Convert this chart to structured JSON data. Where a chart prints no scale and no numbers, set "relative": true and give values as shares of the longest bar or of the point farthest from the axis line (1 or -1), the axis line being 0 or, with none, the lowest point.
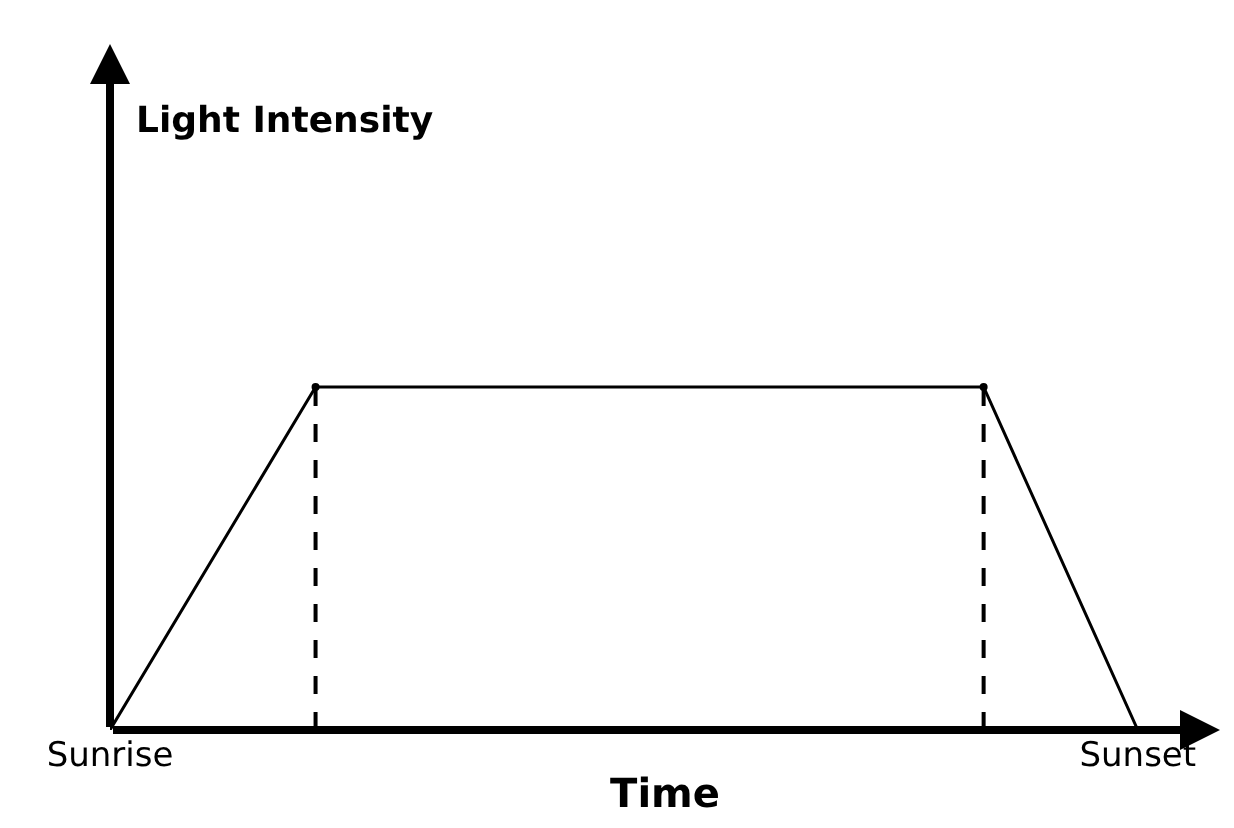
{
  "chart_data": {
    "type": "line",
    "relative": true,
    "annotations": [
      "Light Intensity"
    ],
    "xlabel": "Time",
    "categories": [
      "Sunrise",
      null,
      null,
      null,
      null,
      null,
      null,
      null,
      null,
      null,
      null,
      null,
      null,
      null,
      null,
      null,
      null,
      null,
      null,
      null,
      "Sunset"
    ],
    "series": [
      {
        "color": "#000000",
        "values": [
          0,
          null,
          null,
          null,
          1,
          null,
          null,
          null,
          null,
          null,
          null,
          null,
          null,
          null,
          null,
          null,
          null,
          1,
          null,
          null,
          0
        ]
      },
      {
        "type": "lollipop",
        "color": "#000000",
        "line_style": "dashed",
        "marker": "circle",
        "values": [
          null,
          null,
          null,
          null,
          1,
          null,
          null,
          null,
          null,
          null,
          null,
          null,
          null,
          null,
          null,
          null,
          null,
          1,
          null,
          null,
          null
        ]
      }
    ],
    "marker": "none",
    "line_style": "solid"
  }
}
